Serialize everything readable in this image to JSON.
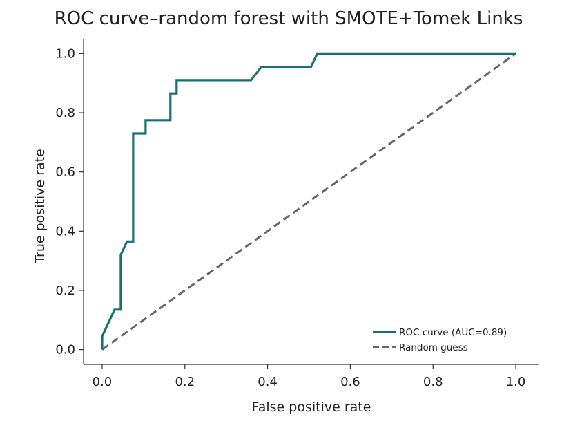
{
  "chart_data": {
    "type": "line",
    "title": "ROC curve–random forest with SMOTE+Tomek Links",
    "xlabel": "False positive rate",
    "ylabel": "True positive rate",
    "xlim": [
      -0.045,
      1.055
    ],
    "ylim": [
      -0.05,
      1.05
    ],
    "xticks": [
      0.0,
      0.2,
      0.4,
      0.6,
      0.8,
      1.0
    ],
    "xtick_labels": [
      "0.0",
      "0.2",
      "0.4",
      "0.6",
      "0.8",
      "1.0"
    ],
    "yticks": [
      0.0,
      0.2,
      0.4,
      0.6,
      0.8,
      1.0
    ],
    "ytick_labels": [
      "0.0",
      "0.2",
      "0.4",
      "0.6",
      "0.8",
      "1.0"
    ],
    "grid": false,
    "legend_position": "bottom-right",
    "series": [
      {
        "name": "ROC curve (AUC=0.89)",
        "color": "#1a7070",
        "style": "solid",
        "x": [
          0.0,
          0.0,
          0.03,
          0.045,
          0.045,
          0.06,
          0.075,
          0.075,
          0.105,
          0.105,
          0.165,
          0.165,
          0.18,
          0.18,
          0.36,
          0.385,
          0.505,
          0.52,
          1.0
        ],
        "y": [
          0.0,
          0.045,
          0.135,
          0.135,
          0.32,
          0.365,
          0.365,
          0.73,
          0.73,
          0.775,
          0.775,
          0.865,
          0.865,
          0.91,
          0.91,
          0.955,
          0.955,
          1.0,
          1.0
        ]
      },
      {
        "name": "Random guess",
        "color": "#666666",
        "style": "dashed",
        "x": [
          0.0,
          1.0
        ],
        "y": [
          0.0,
          1.0
        ]
      }
    ]
  }
}
